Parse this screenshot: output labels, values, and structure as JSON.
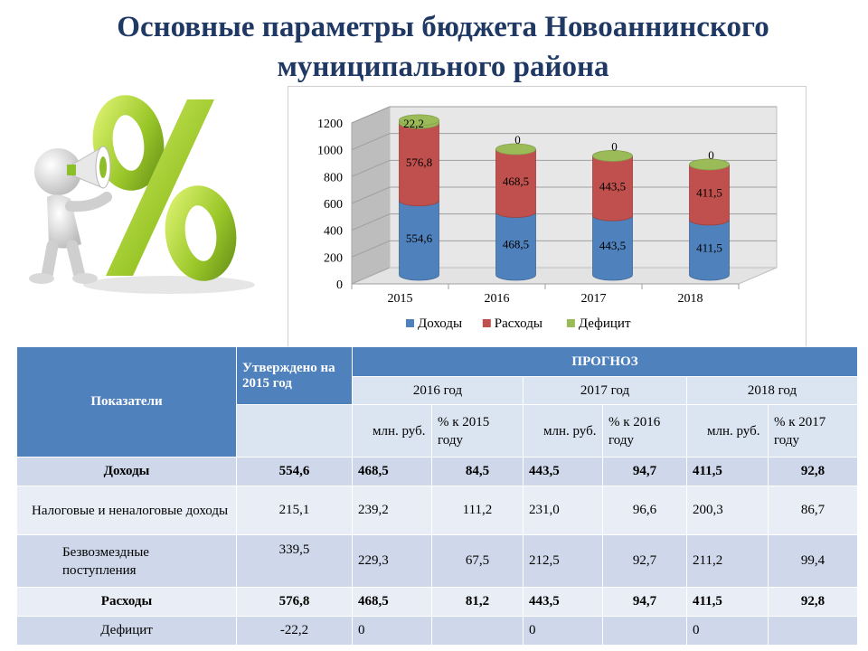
{
  "title": "Основные параметры бюджета Новоаннинского муниципального района",
  "chart_data": {
    "type": "bar",
    "stacked": true,
    "categories": [
      "2015",
      "2016",
      "2017",
      "2018"
    ],
    "series": [
      {
        "name": "Доходы",
        "values": [
          554.6,
          468.5,
          443.5,
          411.5
        ],
        "labels": [
          "554,6",
          "468,5",
          "443,5",
          "411,5"
        ],
        "color": "#4f81bd"
      },
      {
        "name": "Расходы",
        "values": [
          576.8,
          468.5,
          443.5,
          411.5
        ],
        "labels": [
          "576,8",
          "468,5",
          "443,5",
          "411,5"
        ],
        "color": "#c0504d"
      },
      {
        "name": "Дефицит",
        "values": [
          22.2,
          0,
          0,
          0
        ],
        "labels": [
          "22,2",
          "0",
          "0",
          "0"
        ],
        "color": "#9bbb59"
      }
    ],
    "yticks": [
      "0",
      "200",
      "400",
      "600",
      "800",
      "1000",
      "1200"
    ],
    "ylim": [
      0,
      1200
    ],
    "legend_position": "bottom",
    "grid": true
  },
  "table": {
    "h_indicator": "Показатели",
    "h_approved": "Утверждено на 2015 год",
    "h_forecast": "ПРОГНОЗ",
    "years": [
      "2016 год",
      "2017 год",
      "2018 год"
    ],
    "units": [
      "млн. руб.",
      "% к 2015 году",
      "млн. руб.",
      "% к 2016 году",
      "млн. руб.",
      "% к 2017 году"
    ],
    "rows": [
      {
        "label": "Доходы",
        "cells": [
          "554,6",
          "468,5",
          "84,5",
          "443,5",
          "94,7",
          "411,5",
          "92,8"
        ]
      },
      {
        "label": "Налоговые и неналоговые доходы",
        "cells": [
          "215,1",
          "239,2",
          "111,2",
          "231,0",
          "96,6",
          "200,3",
          "86,7"
        ]
      },
      {
        "label": "Безвозмездные поступления",
        "cells": [
          "339,5",
          "229,3",
          "67,5",
          "212,5",
          "92,7",
          "211,2",
          "99,4"
        ]
      },
      {
        "label": "Расходы",
        "cells": [
          "576,8",
          "468,5",
          "81,2",
          "443,5",
          "94,7",
          "411,5",
          "92,8"
        ]
      },
      {
        "label": "Дефицит",
        "cells": [
          "-22,2",
          "0",
          "",
          "0",
          "",
          "0",
          ""
        ]
      }
    ]
  }
}
